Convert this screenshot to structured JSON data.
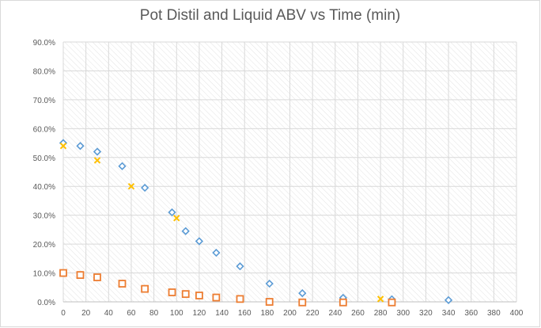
{
  "chart_data": {
    "type": "scatter",
    "title": "Pot Distil and Liquid ABV vs Time (min)",
    "xlabel": "",
    "ylabel": "",
    "xlim": [
      0,
      400
    ],
    "ylim": [
      0,
      0.9
    ],
    "x_ticks": [
      "0",
      "20",
      "40",
      "60",
      "80",
      "100",
      "120",
      "140",
      "160",
      "180",
      "200",
      "220",
      "240",
      "260",
      "280",
      "300",
      "320",
      "340",
      "360",
      "380",
      "400"
    ],
    "y_ticks": [
      "0.0%",
      "10.0%",
      "20.0%",
      "30.0%",
      "40.0%",
      "50.0%",
      "60.0%",
      "70.0%",
      "80.0%",
      "90.0%"
    ],
    "grid": true,
    "legend": "none",
    "series": [
      {
        "marker": "diamond",
        "color": "#5b9bd5",
        "points": [
          [
            0,
            0.55
          ],
          [
            15,
            0.54
          ],
          [
            30,
            0.52
          ],
          [
            52,
            0.47
          ],
          [
            72,
            0.395
          ],
          [
            96,
            0.31
          ],
          [
            108,
            0.245
          ],
          [
            120,
            0.21
          ],
          [
            135,
            0.17
          ],
          [
            156,
            0.123
          ],
          [
            182,
            0.063
          ],
          [
            211,
            0.03
          ],
          [
            247,
            0.014
          ],
          [
            290,
            0.009
          ],
          [
            340,
            0.006
          ]
        ]
      },
      {
        "marker": "x",
        "color": "#ffc000",
        "points": [
          [
            0,
            0.54
          ],
          [
            30,
            0.49
          ],
          [
            60,
            0.4
          ],
          [
            100,
            0.29
          ],
          [
            280,
            0.01
          ]
        ]
      },
      {
        "marker": "square",
        "color": "#ed7d31",
        "points": [
          [
            0,
            0.1
          ],
          [
            15,
            0.093
          ],
          [
            30,
            0.085
          ],
          [
            52,
            0.063
          ],
          [
            72,
            0.045
          ],
          [
            96,
            0.033
          ],
          [
            108,
            0.027
          ],
          [
            120,
            0.022
          ],
          [
            135,
            0.015
          ],
          [
            156,
            0.01
          ],
          [
            182,
            0.0
          ],
          [
            211,
            -0.002
          ],
          [
            247,
            -0.002
          ],
          [
            290,
            -0.002
          ]
        ]
      }
    ]
  }
}
